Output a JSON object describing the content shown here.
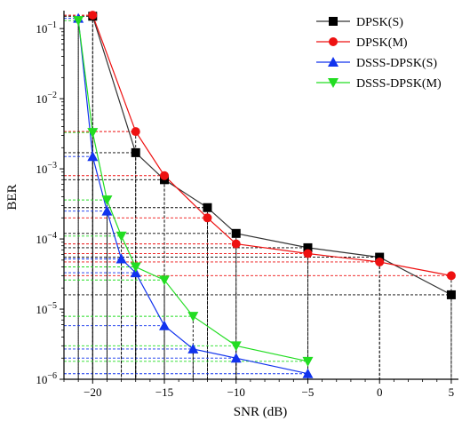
{
  "chart_data": {
    "type": "line",
    "xlabel": "SNR (dB)",
    "ylabel": "BER",
    "xlim": [
      -22,
      5.5
    ],
    "ylim": [
      1e-06,
      0.18
    ],
    "yscale": "log",
    "x_ticks": [
      -20,
      -15,
      -10,
      -5,
      0,
      5
    ],
    "x_tick_labels": [
      "−20",
      "−15",
      "−10",
      "−5",
      "0",
      "5"
    ],
    "y_ticks": [
      1e-06,
      1e-05,
      0.0001,
      0.001,
      0.01,
      0.1
    ],
    "y_tick_labels": [
      {
        "base": "10",
        "exp": "−6"
      },
      {
        "base": "10",
        "exp": "−5"
      },
      {
        "base": "10",
        "exp": "−4"
      },
      {
        "base": "10",
        "exp": "−3"
      },
      {
        "base": "10",
        "exp": "−2"
      },
      {
        "base": "10",
        "exp": "−1"
      }
    ],
    "grid": false,
    "legend_position": "top-right",
    "drop_lines": true,
    "series": [
      {
        "name": "DPSK(S)",
        "color": "#333333",
        "marker_color": "#000000",
        "marker": "square",
        "x": [
          -20,
          -17,
          -15,
          -12,
          -10,
          -5,
          0,
          5
        ],
        "y": [
          0.15,
          0.0017,
          0.0007,
          0.00028,
          0.00012,
          7.5e-05,
          5.5e-05,
          1.6e-05
        ]
      },
      {
        "name": "DPSK(M)",
        "color": "#ee1111",
        "marker_color": "#ee1111",
        "marker": "circle",
        "x": [
          -20,
          -17,
          -15,
          -12,
          -10,
          -5,
          0,
          5
        ],
        "y": [
          0.155,
          0.0034,
          0.0008,
          0.0002,
          8.5e-05,
          6.2e-05,
          4.7e-05,
          3e-05
        ]
      },
      {
        "name": "DSSS-DPSK(S)",
        "color": "#1133ee",
        "marker_color": "#1133ee",
        "marker": "triangle-up",
        "x": [
          -21,
          -20,
          -19,
          -18,
          -17,
          -15,
          -13,
          -10,
          -5
        ],
        "y": [
          0.14,
          0.0015,
          0.00025,
          5.2e-05,
          3.3e-05,
          5.8e-06,
          2.7e-06,
          2e-06,
          1.2e-06
        ]
      },
      {
        "name": "DSSS-DPSK(M)",
        "color": "#22dd22",
        "marker_color": "#22dd22",
        "marker": "triangle-down",
        "x": [
          -21,
          -20,
          -19,
          -18,
          -17,
          -15,
          -13,
          -10,
          -5
        ],
        "y": [
          0.13,
          0.0033,
          0.00036,
          0.00011,
          4e-05,
          2.6e-05,
          7.9e-06,
          3e-06,
          1.8e-06
        ]
      }
    ]
  }
}
